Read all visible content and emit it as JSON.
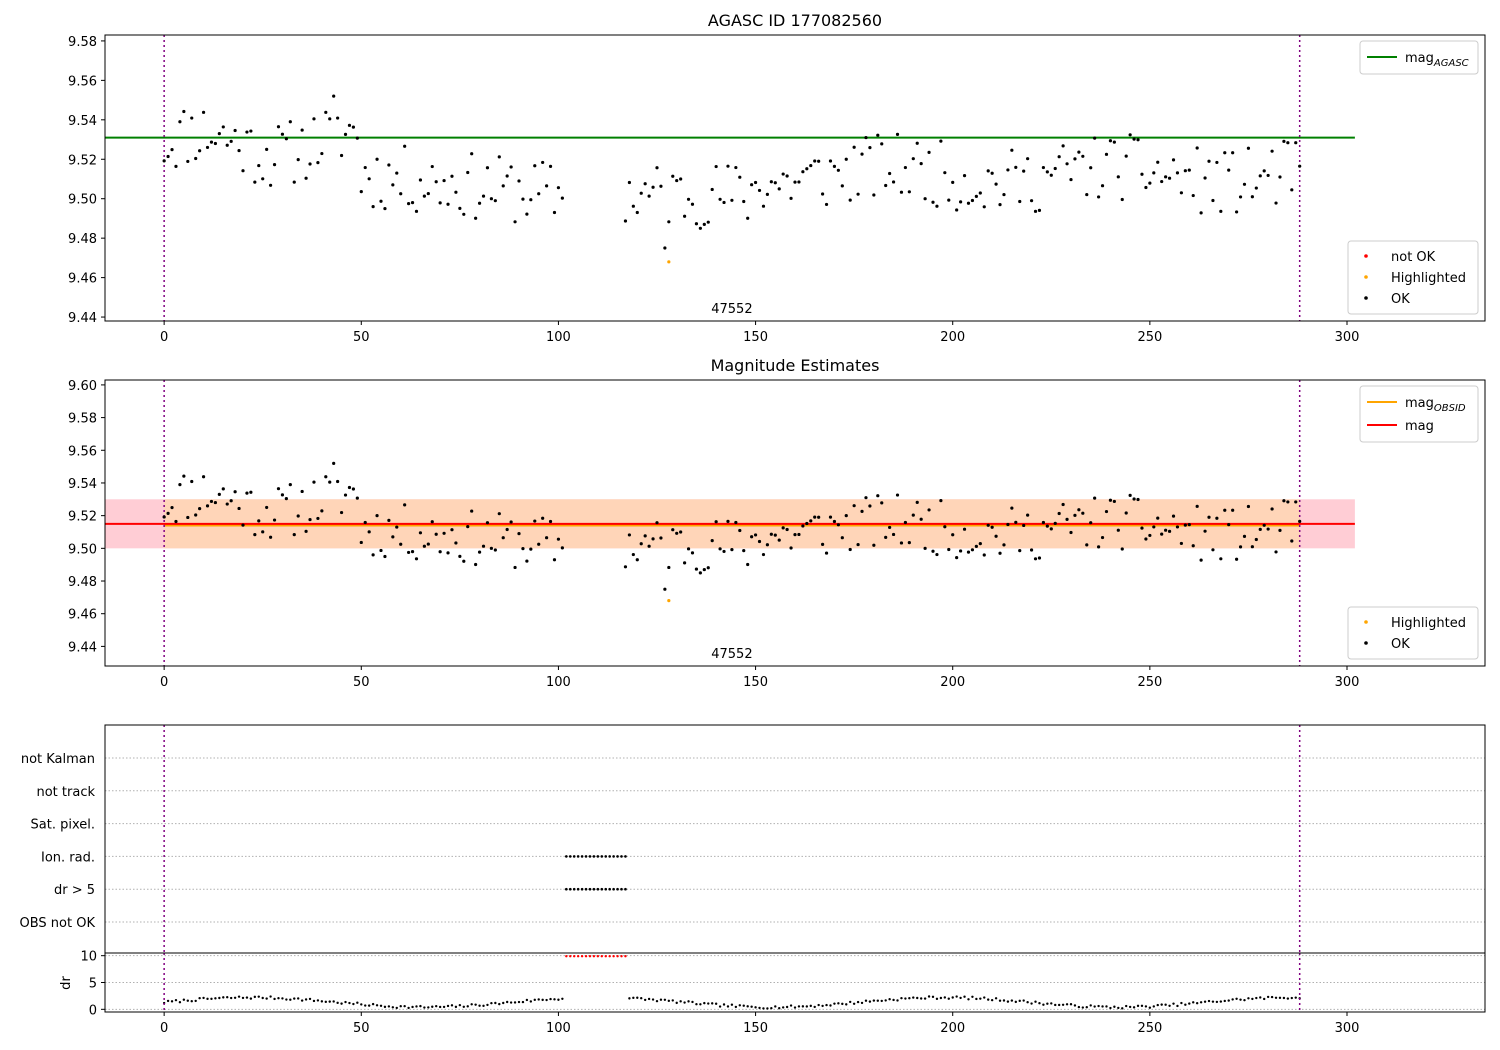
{
  "chart_data": [
    {
      "type": "scatter",
      "title": "AGASC ID 177082560",
      "annotation": "47552",
      "xlim": [
        -15,
        335
      ],
      "ylim": [
        9.438,
        9.583
      ],
      "xticks": [
        0,
        50,
        100,
        150,
        200,
        250,
        300
      ],
      "yticks": [
        9.44,
        9.46,
        9.48,
        9.5,
        9.52,
        9.54,
        9.56,
        9.58
      ],
      "vlines": [
        0,
        288
      ],
      "hlines": [
        {
          "name": "mag_AGASC",
          "y": 9.531,
          "x": [
            -15,
            302
          ],
          "color": "#008000"
        }
      ],
      "legend_upper": [
        {
          "label": "mag",
          "sub": "AGASC",
          "color": "#008000"
        }
      ],
      "legend_lower": [
        {
          "label": "not OK",
          "color": "#ff0000"
        },
        {
          "label": "Highlighted",
          "color": "#ffa500"
        },
        {
          "label": "OK",
          "color": "#000000"
        }
      ],
      "highlighted": [
        {
          "x": 128,
          "y": 9.468
        }
      ],
      "ok_series": {
        "name": "OK",
        "seed": 11,
        "mean": 9.515
      }
    },
    {
      "type": "scatter",
      "title": "Magnitude Estimates",
      "annotation": "47552",
      "xlim": [
        -15,
        335
      ],
      "ylim": [
        9.428,
        9.603
      ],
      "xticks": [
        0,
        50,
        100,
        150,
        200,
        250,
        300
      ],
      "yticks": [
        9.44,
        9.46,
        9.48,
        9.5,
        9.52,
        9.54,
        9.56,
        9.58,
        9.6
      ],
      "vlines": [
        0,
        288
      ],
      "hlines": [
        {
          "name": "mag_OBSID",
          "y": 9.514,
          "x": [
            0,
            288
          ],
          "color": "#ffa500"
        },
        {
          "name": "mag",
          "y": 9.515,
          "x": [
            -15,
            302
          ],
          "color": "#ff0000"
        }
      ],
      "bands": [
        {
          "y": [
            9.5,
            9.53
          ],
          "x": [
            -15,
            302
          ],
          "color": "#ffc0cb"
        },
        {
          "y": [
            9.5,
            9.53
          ],
          "x": [
            0,
            288
          ],
          "color": "#ffd7b0"
        }
      ],
      "legend_upper": [
        {
          "label": "mag",
          "sub": "OBSID",
          "color": "#ffa500"
        },
        {
          "label": "mag",
          "sub": "",
          "color": "#ff0000"
        }
      ],
      "legend_lower": [
        {
          "label": "Highlighted",
          "color": "#ffa500"
        },
        {
          "label": "OK",
          "color": "#000000"
        }
      ],
      "highlighted": [
        {
          "x": 128,
          "y": 9.468
        }
      ]
    },
    {
      "type": "scatter",
      "flag_labels": [
        "not Kalman",
        "not track",
        "Sat. pixel.",
        "Ion. rad.",
        "dr > 5",
        "OBS not OK"
      ],
      "flag_points": {
        "Ion. rad.": [
          102,
          117
        ],
        "dr > 5": [
          102,
          117
        ]
      },
      "xlim": [
        -15,
        335
      ],
      "xticks": [
        0,
        50,
        100,
        150,
        200,
        250,
        300
      ]
    },
    {
      "type": "scatter",
      "ylabel": "dr",
      "ylim": [
        -0.5,
        10.5
      ],
      "yticks": [
        0,
        5,
        10
      ],
      "xlim": [
        -15,
        335
      ],
      "xticks": [
        0,
        50,
        100,
        150,
        200,
        250,
        300
      ],
      "vlines": [
        0,
        288
      ],
      "flagged_range": [
        102,
        117
      ],
      "flagged_value": 9.9
    }
  ]
}
